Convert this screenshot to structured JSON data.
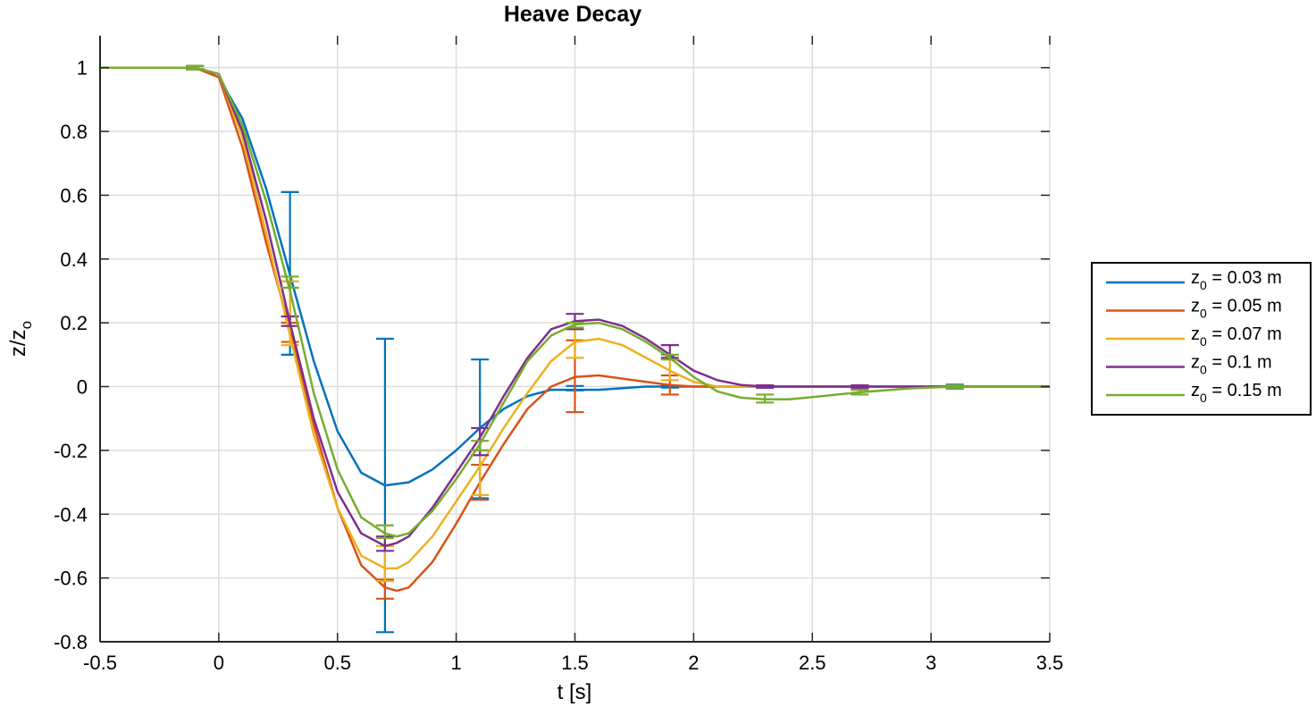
{
  "chart_data": {
    "type": "line",
    "title": "Heave Decay",
    "xlabel": "t [s]",
    "ylabel_main": "z/z",
    "ylabel_sub": "o",
    "xlim": [
      -0.5,
      3.5
    ],
    "ylim": [
      -0.8,
      1.1
    ],
    "xticks": [
      -0.5,
      0,
      0.5,
      1,
      1.5,
      2,
      2.5,
      3,
      3.5
    ],
    "xtick_labels": [
      "-0.5",
      "0",
      "0.5",
      "1",
      "1.5",
      "2",
      "2.5",
      "3",
      "3.5"
    ],
    "yticks": [
      -0.8,
      -0.6,
      -0.4,
      -0.2,
      0,
      0.2,
      0.4,
      0.6,
      0.8,
      1
    ],
    "ytick_labels": [
      "-0.8",
      "-0.6",
      "-0.4",
      "-0.2",
      "0",
      "0.2",
      "0.4",
      "0.6",
      "0.8",
      "1"
    ],
    "grid": true,
    "legend_position": "right",
    "series": [
      {
        "name": "z0 = 0.03 m",
        "legend_main": "z",
        "legend_sub": "0",
        "legend_rest": " = 0.03 m",
        "color": "#0072BD",
        "x": [
          -0.5,
          -0.1,
          0.0,
          0.1,
          0.2,
          0.3,
          0.4,
          0.5,
          0.6,
          0.7,
          0.8,
          0.9,
          1.0,
          1.1,
          1.2,
          1.3,
          1.4,
          1.5,
          1.6,
          1.8,
          2.0,
          2.3,
          2.7,
          3.1,
          3.5
        ],
        "y": [
          1.0,
          1.0,
          0.97,
          0.84,
          0.62,
          0.35,
          0.08,
          -0.14,
          -0.27,
          -0.31,
          -0.3,
          -0.26,
          -0.2,
          -0.13,
          -0.07,
          -0.03,
          -0.01,
          -0.01,
          -0.01,
          0.0,
          0.0,
          0.0,
          0.0,
          0.0,
          0.0
        ],
        "errorbars": [
          {
            "x": -0.1,
            "y": 1.0,
            "low": 0.995,
            "high": 1.005
          },
          {
            "x": 0.3,
            "y": 0.35,
            "low": 0.1,
            "high": 0.61
          },
          {
            "x": 0.7,
            "y": -0.31,
            "low": -0.77,
            "high": 0.15
          },
          {
            "x": 1.1,
            "y": -0.13,
            "low": -0.35,
            "high": 0.085
          },
          {
            "x": 1.5,
            "y": -0.005,
            "low": -0.012,
            "high": 0.002
          },
          {
            "x": 1.9,
            "y": 0.0,
            "low": -0.003,
            "high": 0.003
          },
          {
            "x": 2.3,
            "y": 0.0,
            "low": -0.003,
            "high": 0.003
          },
          {
            "x": 2.7,
            "y": 0.0,
            "low": -0.004,
            "high": 0.004
          },
          {
            "x": 3.1,
            "y": 0.0,
            "low": -0.006,
            "high": 0.006
          }
        ]
      },
      {
        "name": "z0 = 0.05 m",
        "legend_main": "z",
        "legend_sub": "0",
        "legend_rest": " = 0.05 m",
        "color": "#D95319",
        "x": [
          -0.5,
          -0.1,
          0.0,
          0.1,
          0.2,
          0.3,
          0.4,
          0.5,
          0.6,
          0.7,
          0.75,
          0.8,
          0.9,
          1.0,
          1.1,
          1.2,
          1.3,
          1.4,
          1.5,
          1.6,
          1.7,
          1.8,
          1.9,
          2.0,
          2.3,
          2.7,
          3.1,
          3.5
        ],
        "y": [
          1.0,
          1.0,
          0.97,
          0.75,
          0.45,
          0.18,
          -0.12,
          -0.38,
          -0.56,
          -0.63,
          -0.64,
          -0.63,
          -0.55,
          -0.43,
          -0.3,
          -0.18,
          -0.07,
          0.0,
          0.03,
          0.035,
          0.025,
          0.015,
          0.005,
          0.0,
          0.0,
          0.0,
          0.0,
          0.0
        ],
        "errorbars": [
          {
            "x": -0.1,
            "y": 1.0,
            "low": 0.995,
            "high": 1.005
          },
          {
            "x": 0.3,
            "y": 0.17,
            "low": 0.14,
            "high": 0.2
          },
          {
            "x": 0.7,
            "y": -0.63,
            "low": -0.665,
            "high": -0.605
          },
          {
            "x": 1.1,
            "y": -0.3,
            "low": -0.355,
            "high": -0.245
          },
          {
            "x": 1.5,
            "y": 0.03,
            "low": -0.08,
            "high": 0.145
          },
          {
            "x": 1.9,
            "y": 0.005,
            "low": -0.025,
            "high": 0.035
          },
          {
            "x": 2.3,
            "y": 0.0,
            "low": -0.004,
            "high": 0.004
          },
          {
            "x": 2.7,
            "y": 0.0,
            "low": -0.004,
            "high": 0.004
          },
          {
            "x": 3.1,
            "y": 0.0,
            "low": -0.004,
            "high": 0.004
          }
        ]
      },
      {
        "name": "z0 = 0.07 m",
        "legend_main": "z",
        "legend_sub": "0",
        "legend_rest": " = 0.07 m",
        "color": "#EDB120",
        "x": [
          -0.5,
          -0.1,
          0.0,
          0.1,
          0.2,
          0.3,
          0.4,
          0.5,
          0.6,
          0.7,
          0.75,
          0.8,
          0.9,
          1.0,
          1.1,
          1.2,
          1.3,
          1.4,
          1.5,
          1.6,
          1.7,
          1.8,
          1.9,
          2.0,
          2.1,
          2.3,
          2.5,
          2.7,
          3.1,
          3.5
        ],
        "y": [
          1.0,
          1.0,
          0.98,
          0.78,
          0.48,
          0.16,
          -0.15,
          -0.38,
          -0.53,
          -0.57,
          -0.57,
          -0.55,
          -0.47,
          -0.36,
          -0.25,
          -0.13,
          -0.02,
          0.08,
          0.14,
          0.15,
          0.13,
          0.09,
          0.05,
          0.015,
          0.0,
          0.0,
          0.0,
          0.0,
          0.0,
          0.0
        ],
        "errorbars": [
          {
            "x": -0.1,
            "y": 1.0,
            "low": 0.995,
            "high": 1.005
          },
          {
            "x": 0.3,
            "y": 0.16,
            "low": 0.13,
            "high": 0.33
          },
          {
            "x": 0.7,
            "y": -0.57,
            "low": -0.61,
            "high": -0.5
          },
          {
            "x": 1.1,
            "y": -0.25,
            "low": -0.34,
            "high": -0.2
          },
          {
            "x": 1.5,
            "y": 0.14,
            "low": 0.09,
            "high": 0.18
          },
          {
            "x": 1.9,
            "y": 0.05,
            "low": 0.02,
            "high": 0.085
          },
          {
            "x": 2.3,
            "y": 0.0,
            "low": -0.004,
            "high": 0.004
          },
          {
            "x": 2.7,
            "y": 0.0,
            "low": -0.004,
            "high": 0.004
          },
          {
            "x": 3.1,
            "y": 0.0,
            "low": -0.004,
            "high": 0.004
          }
        ]
      },
      {
        "name": "z0 = 0.1 m",
        "legend_main": "z",
        "legend_sub": "0",
        "legend_rest": " = 0.1 m",
        "color": "#7E2F8E",
        "x": [
          -0.5,
          -0.1,
          0.0,
          0.1,
          0.2,
          0.3,
          0.4,
          0.5,
          0.6,
          0.7,
          0.75,
          0.8,
          0.9,
          1.0,
          1.1,
          1.2,
          1.3,
          1.4,
          1.5,
          1.6,
          1.7,
          1.8,
          1.9,
          2.0,
          2.1,
          2.2,
          2.3,
          2.7,
          3.1,
          3.5
        ],
        "y": [
          1.0,
          1.0,
          0.98,
          0.8,
          0.52,
          0.2,
          -0.1,
          -0.33,
          -0.46,
          -0.5,
          -0.49,
          -0.47,
          -0.38,
          -0.27,
          -0.16,
          -0.03,
          0.09,
          0.18,
          0.205,
          0.21,
          0.19,
          0.15,
          0.1,
          0.05,
          0.02,
          0.005,
          0.0,
          0.0,
          0.0,
          0.0
        ],
        "errorbars": [
          {
            "x": -0.1,
            "y": 1.0,
            "low": 0.995,
            "high": 1.005
          },
          {
            "x": 0.3,
            "y": 0.2,
            "low": 0.19,
            "high": 0.22
          },
          {
            "x": 0.7,
            "y": -0.5,
            "low": -0.515,
            "high": -0.47
          },
          {
            "x": 1.1,
            "y": -0.16,
            "low": -0.215,
            "high": -0.13
          },
          {
            "x": 1.5,
            "y": 0.205,
            "low": 0.18,
            "high": 0.228
          },
          {
            "x": 1.9,
            "y": 0.1,
            "low": 0.09,
            "high": 0.13
          },
          {
            "x": 2.3,
            "y": 0.0,
            "low": -0.004,
            "high": 0.004
          },
          {
            "x": 2.7,
            "y": 0.0,
            "low": -0.004,
            "high": 0.004
          },
          {
            "x": 3.1,
            "y": 0.0,
            "low": -0.004,
            "high": 0.004
          }
        ]
      },
      {
        "name": "z0 = 0.15 m",
        "legend_main": "z",
        "legend_sub": "0",
        "legend_rest": " = 0.15 m",
        "color": "#77AC30",
        "x": [
          -0.5,
          -0.1,
          0.0,
          0.1,
          0.2,
          0.3,
          0.4,
          0.5,
          0.6,
          0.7,
          0.75,
          0.8,
          0.9,
          1.0,
          1.1,
          1.2,
          1.3,
          1.4,
          1.5,
          1.6,
          1.7,
          1.8,
          1.9,
          2.0,
          2.1,
          2.2,
          2.3,
          2.4,
          2.5,
          2.7,
          2.9,
          3.1,
          3.5
        ],
        "y": [
          1.0,
          1.0,
          0.98,
          0.82,
          0.58,
          0.3,
          -0.02,
          -0.26,
          -0.41,
          -0.46,
          -0.47,
          -0.46,
          -0.39,
          -0.29,
          -0.18,
          -0.05,
          0.08,
          0.16,
          0.195,
          0.2,
          0.18,
          0.14,
          0.09,
          0.03,
          -0.015,
          -0.035,
          -0.04,
          -0.04,
          -0.033,
          -0.018,
          -0.006,
          0.0,
          0.0
        ],
        "errorbars": [
          {
            "x": -0.1,
            "y": 1.0,
            "low": 0.995,
            "high": 1.005
          },
          {
            "x": 0.3,
            "y": 0.33,
            "low": 0.31,
            "high": 0.345
          },
          {
            "x": 0.7,
            "y": -0.46,
            "low": -0.475,
            "high": -0.435
          },
          {
            "x": 1.1,
            "y": -0.18,
            "low": -0.2,
            "high": -0.17
          },
          {
            "x": 1.5,
            "y": 0.195,
            "low": 0.185,
            "high": 0.2
          },
          {
            "x": 1.9,
            "y": 0.09,
            "low": 0.085,
            "high": 0.1
          },
          {
            "x": 2.3,
            "y": -0.04,
            "low": -0.05,
            "high": -0.025
          },
          {
            "x": 2.7,
            "y": -0.018,
            "low": -0.025,
            "high": -0.01
          },
          {
            "x": 3.1,
            "y": 0.0,
            "low": -0.004,
            "high": 0.004
          }
        ]
      }
    ]
  }
}
